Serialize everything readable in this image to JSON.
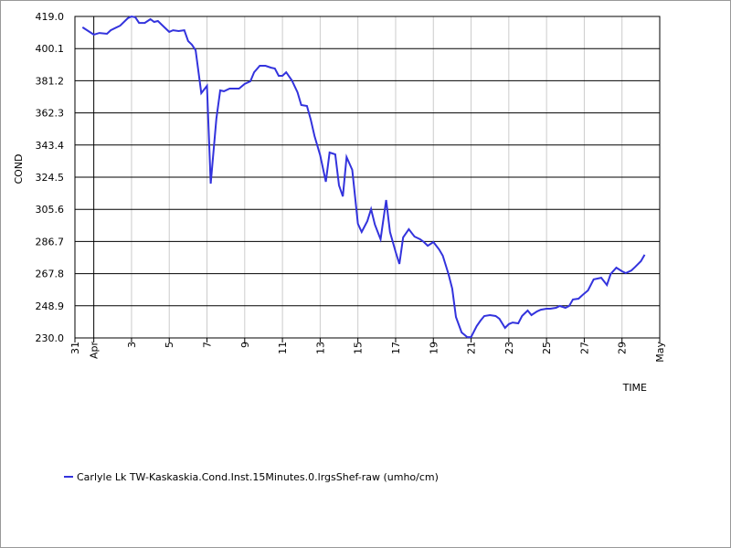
{
  "chart_data": {
    "type": "line",
    "x_label": "TIME",
    "y_label": "COND",
    "xlim": [
      0,
      31
    ],
    "xticks": [
      {
        "value": 0,
        "label": "31"
      },
      {
        "value": 1,
        "label": "Apr"
      },
      3,
      5,
      7,
      9,
      11,
      13,
      15,
      17,
      19,
      21,
      23,
      25,
      27,
      29,
      {
        "value": 31,
        "label": "May"
      }
    ],
    "ylim": [
      230,
      419
    ],
    "yticks": [
      {
        "value": 230,
        "label": "230.0"
      },
      248.9,
      267.8,
      286.7,
      305.6,
      324.5,
      343.4,
      362.3,
      381.2,
      400.1,
      {
        "value": 419,
        "label": "419.0"
      }
    ],
    "grid": true,
    "x": [
      0.4,
      1.0,
      1.3,
      1.7,
      1.9,
      2.4,
      2.8,
      3.0,
      3.2,
      3.4,
      3.7,
      4.0,
      4.2,
      4.4,
      4.7,
      5.0,
      5.2,
      5.5,
      5.8,
      6.0,
      6.2,
      6.4,
      6.7,
      7.0,
      7.2,
      7.5,
      7.7,
      7.9,
      8.2,
      8.7,
      9.0,
      9.3,
      9.5,
      9.8,
      10.1,
      10.4,
      10.6,
      10.8,
      11.0,
      11.2,
      11.5,
      11.8,
      12.0,
      12.3,
      12.5,
      12.7,
      13.0,
      13.3,
      13.5,
      13.8,
      14.0,
      14.2,
      14.4,
      14.7,
      15.0,
      15.2,
      15.5,
      15.7,
      15.9,
      16.2,
      16.5,
      16.7,
      17.0,
      17.2,
      17.4,
      17.7,
      18.0,
      18.3,
      18.5,
      18.7,
      19.0,
      19.3,
      19.5,
      19.8,
      20.0,
      20.2,
      20.5,
      20.8,
      21.0,
      21.3,
      21.5,
      21.7,
      22.0,
      22.3,
      22.5,
      22.8,
      23.0,
      23.2,
      23.5,
      23.7,
      24.0,
      24.2,
      24.5,
      24.7,
      25.0,
      25.2,
      25.5,
      25.7,
      26.0,
      26.2,
      26.4,
      26.7,
      26.9,
      27.2,
      27.5,
      27.7,
      27.9,
      28.2,
      28.4,
      28.7,
      29.0,
      29.2,
      29.5,
      29.7,
      30.0,
      30.2
    ],
    "series": [
      {
        "name": "Carlyle Lk TW-Kaskaskia.Cond.Inst.15Minutes.0.lrgsShef-raw (umho/cm)",
        "color": "#3333dd",
        "values": [
          412.6,
          408.3,
          409.3,
          408.8,
          410.9,
          413.6,
          417.9,
          419.0,
          418.5,
          415.2,
          415.2,
          417.4,
          415.8,
          416.3,
          413.1,
          409.9,
          410.9,
          410.4,
          410.9,
          404.5,
          402.4,
          399.1,
          373.9,
          378.2,
          320.7,
          358.9,
          375.5,
          375.0,
          376.6,
          376.6,
          379.3,
          380.9,
          386.2,
          390.0,
          390.0,
          388.9,
          388.4,
          384.1,
          384.1,
          386.2,
          381.4,
          374.4,
          366.9,
          366.4,
          358.3,
          348.7,
          337.4,
          321.8,
          339.0,
          337.9,
          319.7,
          313.2,
          336.3,
          328.8,
          297.1,
          292.3,
          298.7,
          305.7,
          296.6,
          288.0,
          311.1,
          292.3,
          280.5,
          273.5,
          289.1,
          293.9,
          289.6,
          288.0,
          286.4,
          284.2,
          286.4,
          282.1,
          278.3,
          267.6,
          259.0,
          242.3,
          233.2,
          230.5,
          230.5,
          237.0,
          240.2,
          242.9,
          243.4,
          242.9,
          241.3,
          235.9,
          238.1,
          239.1,
          238.6,
          242.9,
          246.1,
          243.4,
          245.6,
          246.6,
          247.2,
          247.2,
          247.7,
          248.8,
          247.7,
          248.8,
          252.6,
          253.1,
          255.2,
          257.9,
          264.4,
          264.9,
          265.4,
          261.1,
          267.6,
          271.3,
          269.2,
          268.1,
          269.7,
          271.8,
          275.1,
          278.9
        ]
      }
    ]
  }
}
